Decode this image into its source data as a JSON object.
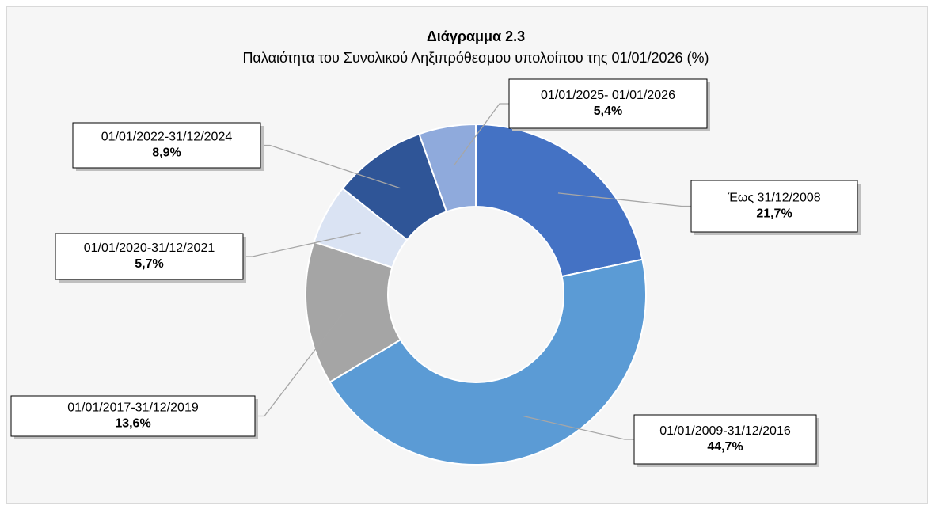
{
  "chart_data": {
    "type": "donut",
    "title": "Διάγραμμα 2.3",
    "subtitle": "Παλαιότητα του Συνολικού Ληξιπρόθεσμου υπολοίπου της 01/01/2026 (%)",
    "categories": [
      "Έως 31/12/2008",
      "01/01/2009-31/12/2016",
      "01/01/2017-31/12/2019",
      "01/01/2020-31/12/2021",
      "01/01/2022-31/12/2024",
      "01/01/2025- 01/01/2026"
    ],
    "values": [
      21.7,
      44.7,
      13.6,
      5.7,
      8.9,
      5.4
    ],
    "value_labels": [
      "21,7%",
      "44,7%",
      "13,6%",
      "5,7%",
      "8,9%",
      "5,4%"
    ],
    "colors": [
      "#4472c4",
      "#5b9bd5",
      "#a5a5a5",
      "#dae3f3",
      "#2f5597",
      "#8faadc"
    ]
  }
}
